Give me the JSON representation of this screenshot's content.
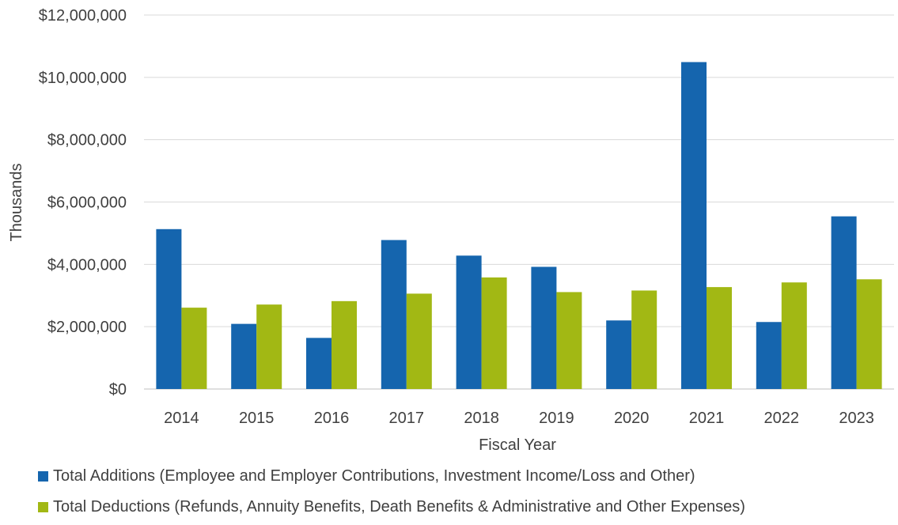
{
  "chart_data": {
    "type": "bar",
    "categories": [
      "2014",
      "2015",
      "2016",
      "2017",
      "2018",
      "2019",
      "2020",
      "2021",
      "2022",
      "2023"
    ],
    "series": [
      {
        "name": "Total Additions (Employee and Employer Contributions, Investment Income/Loss and Other)",
        "color": "#1565AE",
        "values": [
          5130000,
          2090000,
          1640000,
          4780000,
          4280000,
          3920000,
          2200000,
          10490000,
          2150000,
          5540000
        ]
      },
      {
        "name": "Total Deductions (Refunds, Annuity Benefits, Death Benefits & Administrative and Other Expenses)",
        "color": "#A2B814",
        "values": [
          2610000,
          2710000,
          2820000,
          3060000,
          3580000,
          3110000,
          3160000,
          3270000,
          3420000,
          3520000
        ]
      }
    ],
    "ylim": [
      0,
      12000000
    ],
    "yticks": [
      "$0",
      "$2,000,000",
      "$4,000,000",
      "$6,000,000",
      "$8,000,000",
      "$10,000,000",
      "$12,000,000"
    ],
    "xlabel": "Fiscal Year",
    "ylabel": "Thousands",
    "grid": true,
    "legend_position": "bottom"
  }
}
